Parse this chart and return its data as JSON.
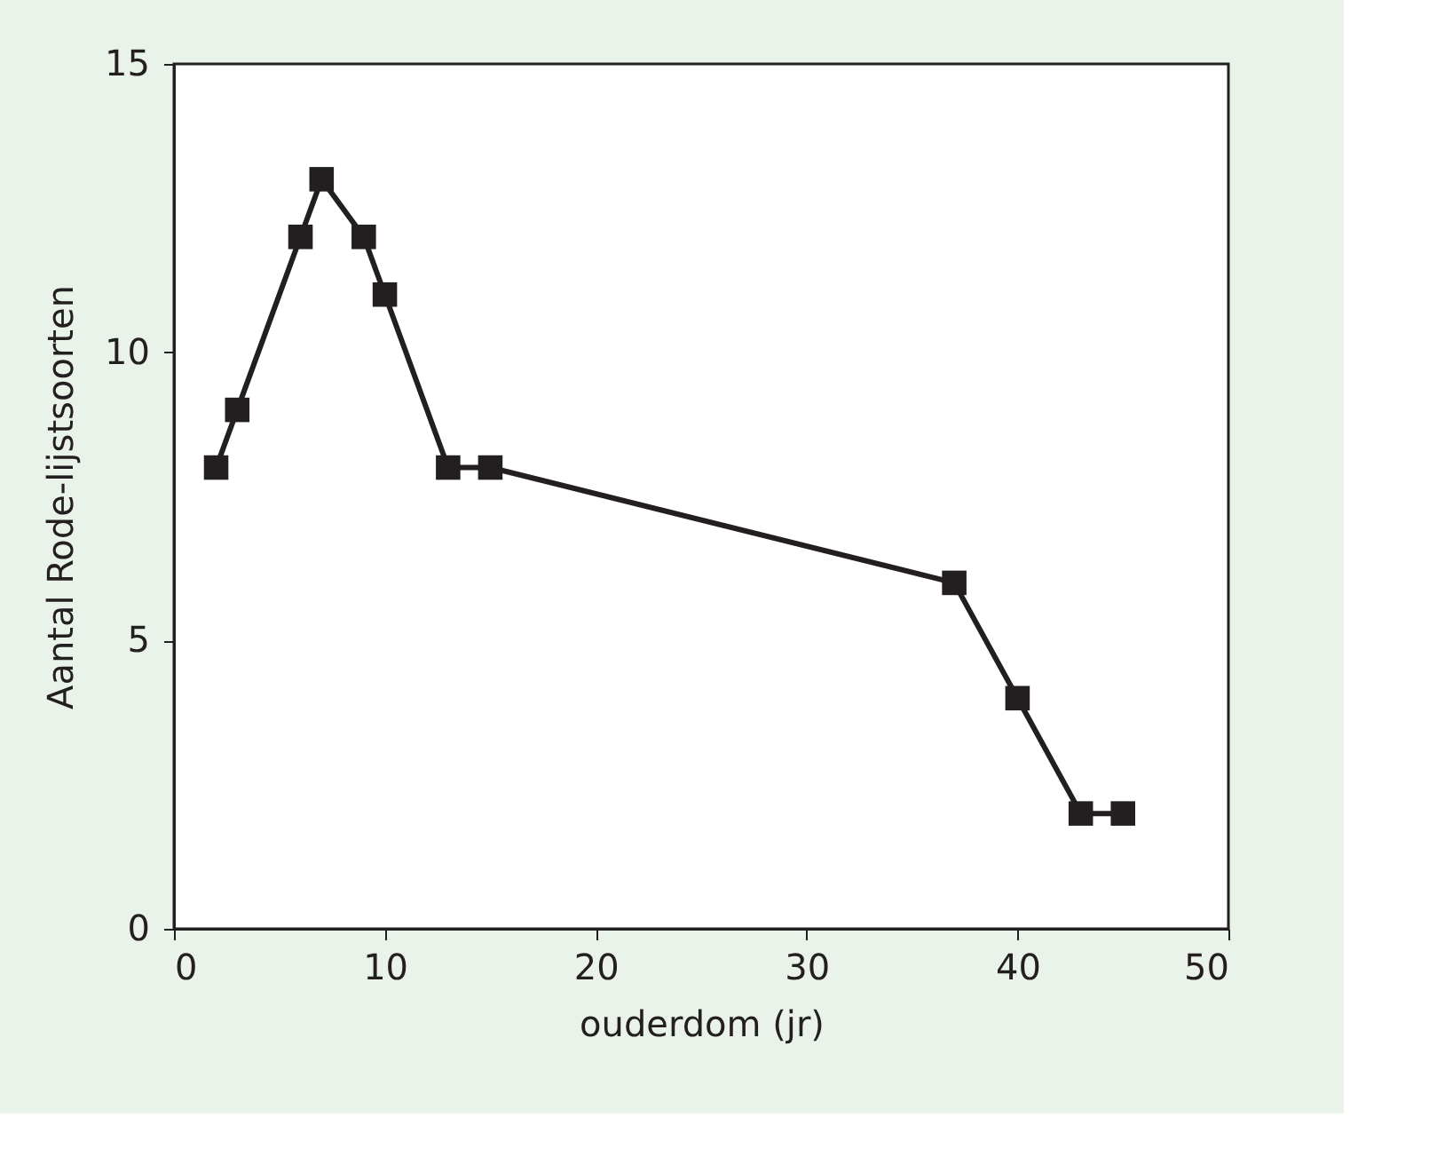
{
  "chart_data": {
    "type": "line",
    "xlabel": "ouderdom (jr)",
    "ylabel": "Aantal Rode-lijstsoorten",
    "x": [
      2,
      3,
      6,
      7,
      9,
      10,
      13,
      15,
      37,
      40,
      43,
      45
    ],
    "series": [
      {
        "color": "#231f20",
        "values": [
          8,
          9,
          12,
          13,
          12,
          11,
          8,
          8,
          6,
          4,
          2,
          2
        ]
      }
    ],
    "xlim": [
      0,
      50
    ],
    "xticks": [
      0,
      10,
      20,
      30,
      40,
      50
    ],
    "ylim": [
      0,
      15
    ],
    "yticks": [
      0,
      5,
      10,
      15
    ],
    "grid": false,
    "marker": "square",
    "line_style": "solid"
  }
}
